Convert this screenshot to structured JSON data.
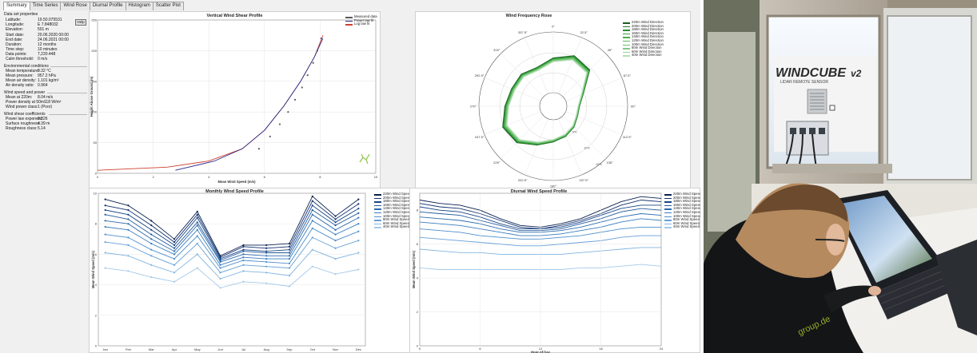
{
  "tabs": [
    "Summary",
    "Time Series",
    "Wind Rose",
    "Diurnal Profile",
    "Histogram",
    "Scatter Plot"
  ],
  "active_tab": 0,
  "props": {
    "data_set_heading": "Data set properties",
    "latitude": {
      "k": "Latitude:",
      "v": "19.50.075531"
    },
    "longitude": {
      "k": "Longitude:",
      "v": "E 7.848032"
    },
    "elevation": {
      "k": "Elevation:",
      "v": "501 m"
    },
    "start": {
      "k": "Start date:",
      "v": "20.06.2020 00:00"
    },
    "end": {
      "k": "End date:",
      "v": "24.06.2021 00:00"
    },
    "duration": {
      "k": "Duration:",
      "v": "12 months"
    },
    "timestep": {
      "k": "Time step:",
      "v": "10 minutes"
    },
    "points": {
      "k": "Data points:",
      "v": "7,220.448"
    },
    "calm": {
      "k": "Calm threshold:",
      "v": "0 m/s"
    },
    "btn": "Help",
    "env_heading": "Environmental conditions",
    "temp": {
      "k": "Mean temperature:",
      "v": "9.32 °C"
    },
    "pressure": {
      "k": "Mean pressure:",
      "v": "957.2 hPa"
    },
    "density": {
      "k": "Mean air density:",
      "v": "1.101 kg/m³"
    },
    "ratio": {
      "k": "Air density ratio:",
      "v": "0.964"
    },
    "wind_heading": "Wind speed and power",
    "mean220": {
      "k": "Mean at 220m:",
      "v": "8.04 m/s"
    },
    "powerdens": {
      "k": "Power density at 50m:",
      "v": "118 W/m²"
    },
    "powerclass": {
      "k": "Wind power class:",
      "v": "1 (Poor)"
    },
    "shear_heading": "Wind shear coefficients",
    "exp": {
      "k": "Power law exponent:",
      "v": "0.326"
    },
    "rough": {
      "k": "Surface roughness:",
      "v": "4.39 m"
    },
    "rclass": {
      "k": "Roughness class:",
      "v": "5.14"
    }
  },
  "shear": {
    "title": "Vertical Wind Shear Profile",
    "xlabel": "Mean Wind Speed (m/s)",
    "ylabel": "Height Above Ground (m)",
    "legend": [
      "Measured data",
      "Power law fit",
      "Log law fit"
    ],
    "colors": {
      "measured": "#5a5a5a",
      "power": "#2a2a8a",
      "log": "#d04030"
    },
    "xticks": [
      "0",
      "2",
      "4",
      "6",
      "8",
      "10"
    ],
    "yticks": [
      "0",
      "50",
      "100",
      "150",
      "200",
      "250"
    ]
  },
  "rose": {
    "title": "Wind Frequency Rose",
    "dir_labels": [
      "0°",
      "22.5°",
      "45°",
      "67.5°",
      "90°",
      "112.5°",
      "135°",
      "157.5°",
      "180°",
      "202.5°",
      "225°",
      "247.5°",
      "270°",
      "292.5°",
      "315°",
      "337.5°"
    ],
    "ring_labels": [
      "5%",
      "10%",
      "15%"
    ],
    "legend": [
      "220m Wind Direction",
      "200m Wind Direction",
      "180m Wind Direction",
      "160m Wind Direction",
      "140m Wind Direction",
      "120m Wind Direction",
      "100m Wind Direction",
      "80m Wind Direction",
      "60m Wind Direction",
      "40m Wind Direction"
    ],
    "colors": [
      "#1b5e20",
      "#237a2a",
      "#2e8b34",
      "#38a03e",
      "#4caf50",
      "#5cb85f",
      "#6cc06e",
      "#82c884",
      "#9ad39a",
      "#b3dfb3"
    ]
  },
  "monthly": {
    "title": "Monthly Wind Speed Profile",
    "xlabel": "",
    "ylabel": "Mean Wind Speed (m/s)",
    "months": [
      "Jan",
      "Feb",
      "Mar",
      "Apr",
      "May",
      "Jun",
      "Jul",
      "Aug",
      "Sep",
      "Oct",
      "Nov",
      "Dec"
    ],
    "yticks": [
      "0",
      "2",
      "4",
      "6",
      "8",
      "10"
    ],
    "legend": [
      "220m Wind Speed",
      "200m Wind Speed",
      "180m Wind Speed",
      "160m Wind Speed",
      "140m Wind Speed",
      "120m Wind Speed",
      "100m Wind Speed",
      "80m Wind Speed",
      "60m Wind Speed",
      "40m Wind Speed"
    ]
  },
  "diurnal": {
    "title": "Diurnal Wind Speed Profile",
    "xlabel": "Hour of Day",
    "ylabel": "Mean Wind Speed (m/s)",
    "xticks": [
      "0",
      "6",
      "12",
      "18",
      "24"
    ],
    "yticks": [
      "0",
      "2",
      "4",
      "6",
      "8"
    ],
    "legend": [
      "220m Wind Speed",
      "200m Wind Speed",
      "180m Wind Speed",
      "160m Wind Speed",
      "140m Wind Speed",
      "120m Wind Speed",
      "100m Wind Speed",
      "80m Wind Speed",
      "60m Wind Speed",
      "40m Wind Speed"
    ]
  },
  "series_colors": [
    "#0b2150",
    "#12316e",
    "#1a4586",
    "#235a9c",
    "#2d6cb0",
    "#3a7dc0",
    "#4d8ecc",
    "#65a0d6",
    "#82b4e0",
    "#a4c9ea"
  ],
  "chart_data": [
    {
      "type": "line",
      "title": "Vertical Wind Shear Profile",
      "xlabel": "Mean Wind Speed (m/s)",
      "ylabel": "Height Above Ground (m)",
      "xlim": [
        0,
        10
      ],
      "ylim": [
        0,
        250
      ],
      "series": [
        {
          "name": "Measured data",
          "x": [
            5.8,
            6.2,
            6.55,
            6.85,
            7.1,
            7.35,
            7.55,
            7.75,
            7.9,
            8.04
          ],
          "y": [
            40,
            60,
            80,
            100,
            120,
            140,
            160,
            180,
            200,
            220
          ]
        },
        {
          "name": "Power law fit",
          "x": [
            2.8,
            4.2,
            5.2,
            6.0,
            6.7,
            7.3,
            7.8,
            8.1
          ],
          "y": [
            5,
            20,
            40,
            70,
            110,
            150,
            190,
            220
          ]
        },
        {
          "name": "Log law fit",
          "x": [
            0,
            2.5,
            4.0,
            5.2,
            6.0,
            6.7,
            7.3,
            7.8,
            8.1
          ],
          "y": [
            5,
            10,
            20,
            40,
            70,
            110,
            150,
            190,
            225
          ]
        }
      ]
    },
    {
      "type": "line",
      "title": "Monthly Wind Speed Profile",
      "ylabel": "Mean Wind Speed (m/s)",
      "categories": [
        "Jan",
        "Feb",
        "Mar",
        "Apr",
        "May",
        "Jun",
        "Jul",
        "Aug",
        "Sep",
        "Oct",
        "Nov",
        "Dec"
      ],
      "ylim": [
        0,
        10
      ],
      "series": [
        {
          "name": "220m Wind Speed",
          "values": [
            9.6,
            9.2,
            8.2,
            7.0,
            8.8,
            5.9,
            6.6,
            6.6,
            6.7,
            9.8,
            8.5,
            9.6
          ]
        },
        {
          "name": "200m Wind Speed",
          "values": [
            9.2,
            8.9,
            7.9,
            6.8,
            8.6,
            5.8,
            6.5,
            6.4,
            6.5,
            9.5,
            8.3,
            9.3
          ]
        },
        {
          "name": "180m Wind Speed",
          "values": [
            8.9,
            8.6,
            7.6,
            6.6,
            8.4,
            5.7,
            6.3,
            6.2,
            6.3,
            9.2,
            8.1,
            9.0
          ]
        },
        {
          "name": "160m Wind Speed",
          "values": [
            8.6,
            8.3,
            7.3,
            6.4,
            8.1,
            5.6,
            6.2,
            6.1,
            6.1,
            8.9,
            7.9,
            8.7
          ]
        },
        {
          "name": "140m Wind Speed",
          "values": [
            8.2,
            8.0,
            7.0,
            6.2,
            7.9,
            5.5,
            6.0,
            5.9,
            5.9,
            8.6,
            7.6,
            8.4
          ]
        },
        {
          "name": "120m Wind Speed",
          "values": [
            7.8,
            7.6,
            6.7,
            6.0,
            7.6,
            5.3,
            5.8,
            5.7,
            5.7,
            8.2,
            7.3,
            8.0
          ]
        },
        {
          "name": "100m Wind Speed",
          "values": [
            7.3,
            7.1,
            6.3,
            5.7,
            7.2,
            5.1,
            5.6,
            5.5,
            5.4,
            7.7,
            6.9,
            7.5
          ]
        },
        {
          "name": "80m Wind Speed",
          "values": [
            6.8,
            6.6,
            5.9,
            5.3,
            6.7,
            4.8,
            5.3,
            5.2,
            5.1,
            7.1,
            6.4,
            6.9
          ]
        },
        {
          "name": "60m Wind Speed",
          "values": [
            6.1,
            5.9,
            5.3,
            4.8,
            6.0,
            4.4,
            4.9,
            4.8,
            4.6,
            6.3,
            5.7,
            6.1
          ]
        },
        {
          "name": "40m Wind Speed",
          "values": [
            5.1,
            4.9,
            4.5,
            4.2,
            5.1,
            3.8,
            4.2,
            4.1,
            3.9,
            5.2,
            4.7,
            5.0
          ]
        }
      ]
    },
    {
      "type": "line",
      "title": "Diurnal Wind Speed Profile",
      "xlabel": "Hour of Day",
      "ylabel": "Mean Wind Speed (m/s)",
      "x": [
        0,
        2,
        4,
        6,
        8,
        10,
        12,
        14,
        16,
        18,
        20,
        22,
        24
      ],
      "xlim": [
        0,
        24
      ],
      "ylim": [
        0,
        9
      ],
      "series": [
        {
          "name": "220m Wind Speed",
          "values": [
            8.6,
            8.4,
            8.3,
            8.0,
            7.5,
            7.1,
            7.0,
            7.2,
            7.5,
            8.0,
            8.5,
            8.8,
            8.7
          ]
        },
        {
          "name": "200m Wind Speed",
          "values": [
            8.4,
            8.2,
            8.1,
            7.8,
            7.4,
            7.0,
            6.9,
            7.1,
            7.4,
            7.8,
            8.3,
            8.6,
            8.5
          ]
        },
        {
          "name": "180m Wind Speed",
          "values": [
            8.2,
            8.0,
            7.9,
            7.6,
            7.2,
            6.9,
            6.9,
            7.0,
            7.3,
            7.7,
            8.1,
            8.3,
            8.3
          ]
        },
        {
          "name": "160m Wind Speed",
          "values": [
            7.9,
            7.8,
            7.7,
            7.4,
            7.1,
            6.8,
            6.8,
            6.9,
            7.2,
            7.5,
            7.9,
            8.1,
            8.0
          ]
        },
        {
          "name": "140m Wind Speed",
          "values": [
            7.6,
            7.5,
            7.4,
            7.2,
            6.9,
            6.7,
            6.7,
            6.8,
            7.0,
            7.3,
            7.6,
            7.8,
            7.7
          ]
        },
        {
          "name": "120m Wind Speed",
          "values": [
            7.3,
            7.2,
            7.1,
            6.9,
            6.7,
            6.5,
            6.5,
            6.6,
            6.8,
            7.0,
            7.3,
            7.5,
            7.4
          ]
        },
        {
          "name": "100m Wind Speed",
          "values": [
            6.9,
            6.8,
            6.7,
            6.5,
            6.4,
            6.3,
            6.3,
            6.4,
            6.5,
            6.7,
            6.9,
            7.0,
            7.0
          ]
        },
        {
          "name": "80m Wind Speed",
          "values": [
            6.4,
            6.3,
            6.2,
            6.1,
            6.0,
            5.9,
            5.9,
            6.0,
            6.1,
            6.2,
            6.4,
            6.5,
            6.5
          ]
        },
        {
          "name": "60m Wind Speed",
          "values": [
            5.7,
            5.6,
            5.5,
            5.5,
            5.4,
            5.4,
            5.4,
            5.4,
            5.5,
            5.6,
            5.7,
            5.8,
            5.8
          ]
        },
        {
          "name": "40m Wind Speed",
          "values": [
            4.6,
            4.5,
            4.5,
            4.5,
            4.5,
            4.5,
            4.5,
            4.5,
            4.6,
            4.6,
            4.7,
            4.8,
            4.7
          ]
        }
      ]
    },
    {
      "type": "line",
      "title": "Wind Frequency Rose",
      "categories": [
        "0°",
        "22.5°",
        "45°",
        "67.5°",
        "90°",
        "112.5°",
        "135°",
        "157.5°",
        "180°",
        "202.5°",
        "225°",
        "247.5°",
        "270°",
        "292.5°",
        "315°",
        "337.5°"
      ],
      "series": [
        {
          "name": "220m Wind Direction",
          "values": [
            11,
            13,
            12,
            6,
            4,
            4,
            5,
            6,
            7,
            9,
            12,
            13,
            11,
            10,
            10,
            9
          ]
        }
      ]
    }
  ],
  "photo": {
    "brand": "WINDCUBE",
    "brand_suffix": "v2",
    "tagline": "LIDAR REMOTE SENSOR",
    "jacket_text": "group.de"
  }
}
